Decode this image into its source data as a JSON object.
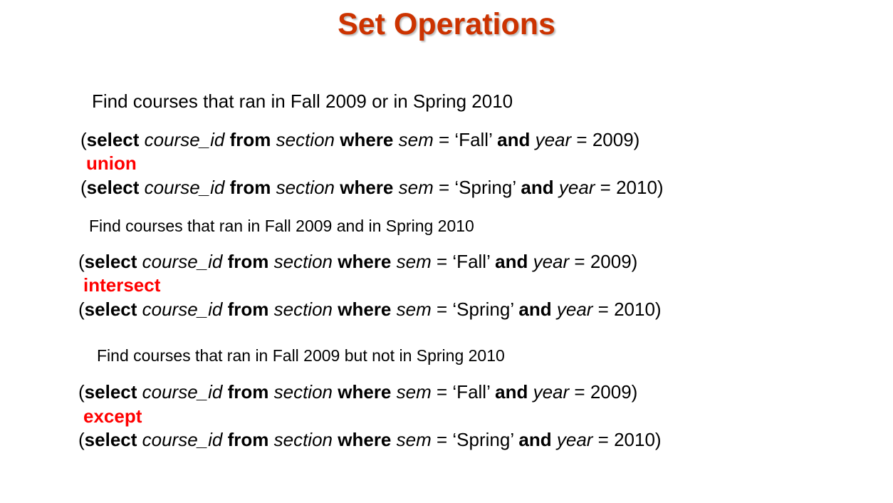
{
  "slide": {
    "title": "Set Operations"
  },
  "blocks": [
    {
      "description": "Find courses that ran in Fall 2009 or in Spring 2010",
      "query1": {
        "open": "(",
        "kw_select": "select",
        "attr": "course_id",
        "kw_from": "from",
        "rel": "section",
        "kw_where": "where",
        "col_sem": "sem",
        "eq1": " = ",
        "sem_value": "‘Fall’",
        "kw_and": "and",
        "col_year": "year",
        "eq2": " = ",
        "year_value": "2009)"
      },
      "operator": "union",
      "query2": {
        "open": "(",
        "kw_select": "select",
        "attr": "course_id",
        "kw_from": "from",
        "rel": "section",
        "kw_where": "where",
        "col_sem": "sem",
        "eq1": " = ",
        "sem_value": "‘Spring’",
        "kw_and": "and",
        "col_year": "year",
        "eq2": " = ",
        "year_value": "2010)"
      }
    },
    {
      "description": "Find courses that ran in Fall 2009 and in Spring 2010",
      "query1": {
        "open": "(",
        "kw_select": "select",
        "attr": "course_id",
        "kw_from": "from",
        "rel": "section",
        "kw_where": "where",
        "col_sem": "sem",
        "eq1": " = ",
        "sem_value": "‘Fall’",
        "kw_and": "and",
        "col_year": "year",
        "eq2": " = ",
        "year_value": "2009)"
      },
      "operator": "intersect",
      "query2": {
        "open": "(",
        "kw_select": "select",
        "attr": "course_id",
        "kw_from": "from",
        "rel": "section",
        "kw_where": "where",
        "col_sem": "sem",
        "eq1": " = ",
        "sem_value": "‘Spring’",
        "kw_and": "and",
        "col_year": "year",
        "eq2": " = ",
        "year_value": "2010)"
      }
    },
    {
      "description": "Find courses that ran in Fall 2009 but not in Spring 2010",
      "query1": {
        "open": "(",
        "kw_select": "select",
        "attr": "course_id",
        "kw_from": "from",
        "rel": "section",
        "kw_where": "where",
        "col_sem": "sem",
        "eq1": " = ",
        "sem_value": "‘Fall’",
        "kw_and": "and",
        "col_year": "year",
        "eq2": " = ",
        "year_value": "2009)"
      },
      "operator": "except",
      "query2": {
        "open": "(",
        "kw_select": "select",
        "attr": "course_id",
        "kw_from": "from",
        "rel": "section",
        "kw_where": "where",
        "col_sem": "sem",
        "eq1": " = ",
        "sem_value": "‘Spring’",
        "kw_and": "and",
        "col_year": "year",
        "eq2": " = ",
        "year_value": "2010)"
      }
    }
  ],
  "colors": {
    "title": "#cc3300",
    "operator": "#ff0000",
    "text": "#000000"
  }
}
